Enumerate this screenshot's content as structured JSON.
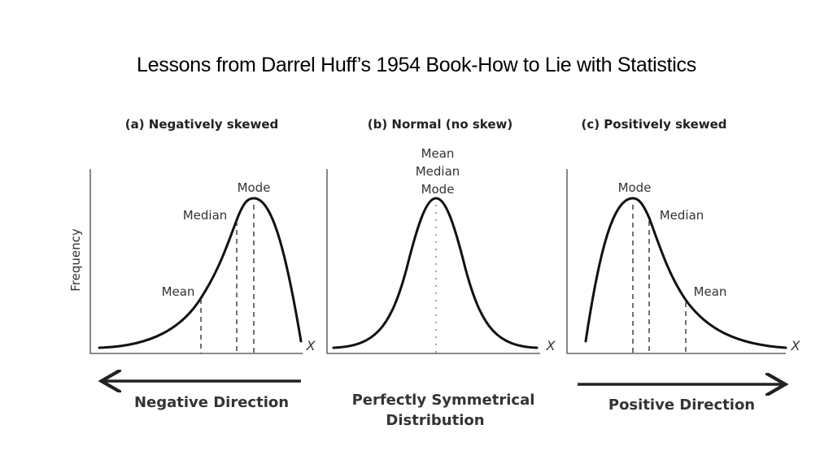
{
  "title": "Lessons from Darrel Huff’s 1954 Book-How to Lie with Statistics",
  "y_axis_label": "Frequency",
  "x_axis_symbol": "X",
  "panels": [
    {
      "heading": "(a) Negatively skewed",
      "labels": {
        "mode": "Mode",
        "median": "Median",
        "mean": "Mean"
      },
      "direction": "Negative Direction"
    },
    {
      "heading": "(b) Normal (no skew)",
      "labels": {
        "mean": "Mean",
        "median": "Median",
        "mode": "Mode"
      },
      "direction_line1": "Perfectly Symmetrical",
      "direction_line2": "Distribution"
    },
    {
      "heading": "(c) Positively skewed",
      "labels": {
        "mode": "Mode",
        "median": "Median",
        "mean": "Mean"
      },
      "direction": "Positive Direction"
    }
  ]
}
